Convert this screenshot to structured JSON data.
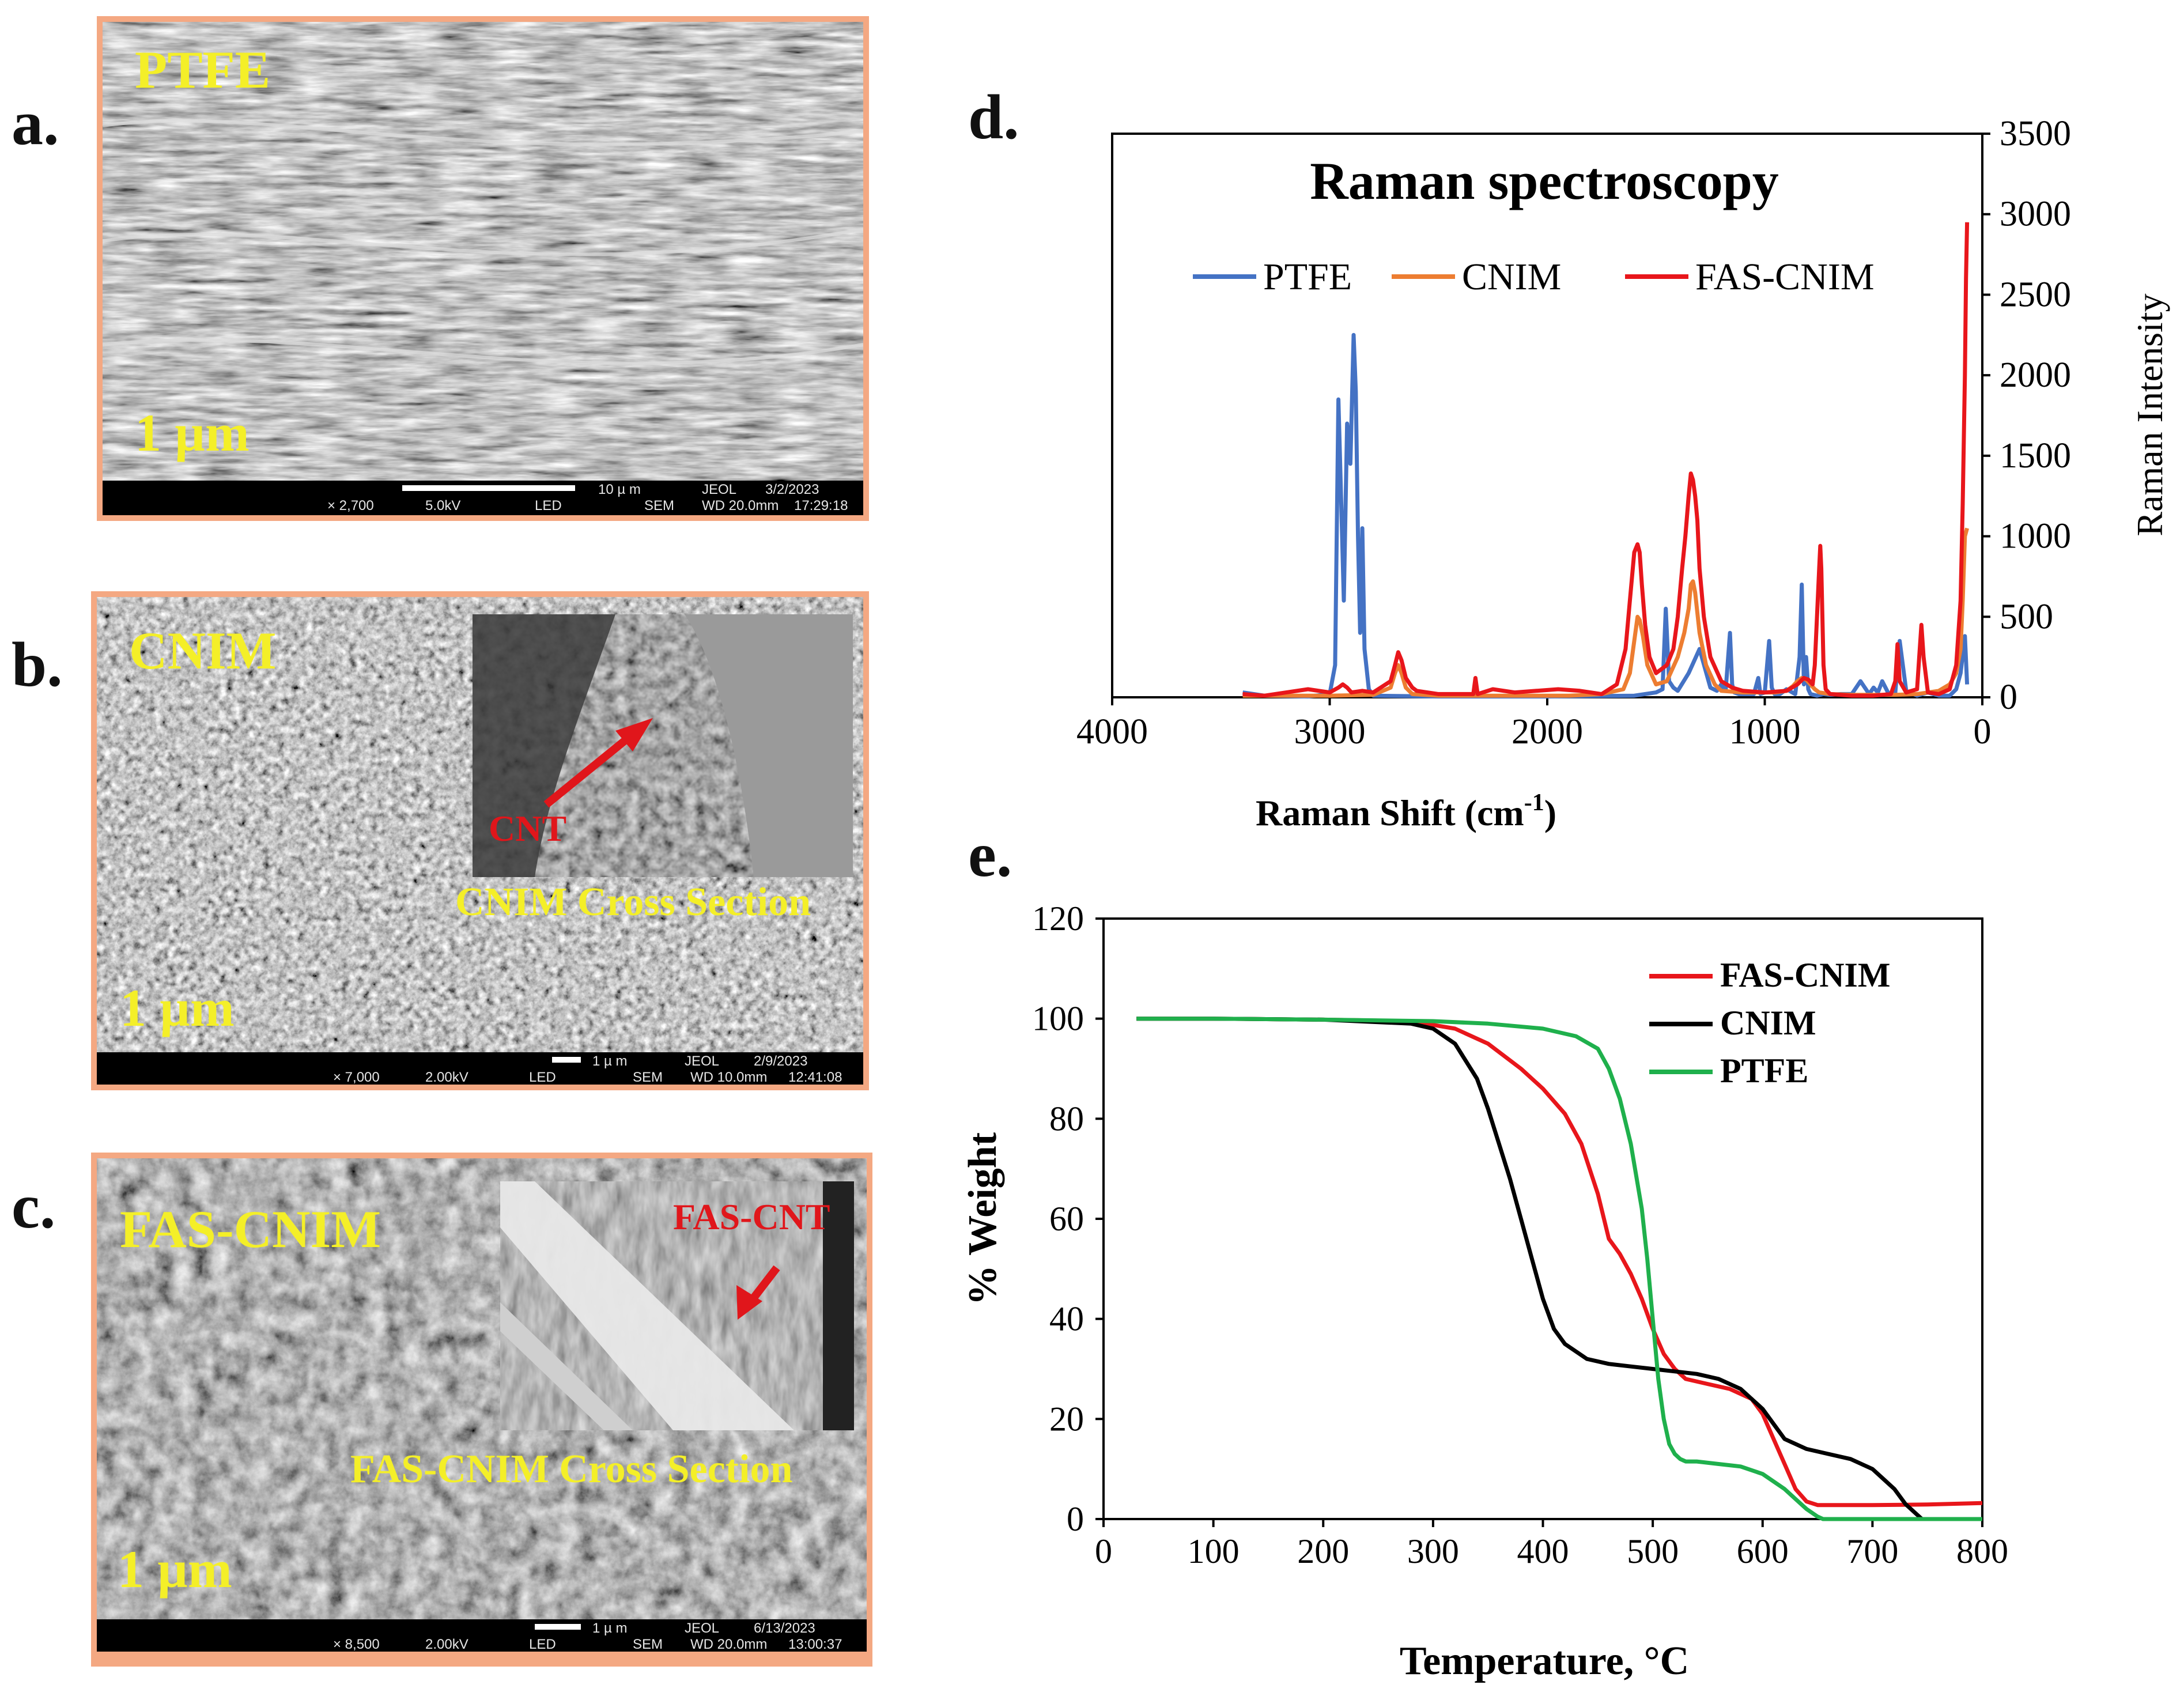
{
  "panels": {
    "a": {
      "letter": "a.",
      "label": "PTFE",
      "scale": "1 µm",
      "bar": {
        "scale_text": "10 µ m",
        "org": "JEOL",
        "date": "3/2/2023",
        "mag": "× 2,700",
        "kv": "5.0kV",
        "det": "LED",
        "mode": "SEM",
        "wd": "WD 20.0mm",
        "time": "17:29:18"
      }
    },
    "b": {
      "letter": "b.",
      "label": "CNIM",
      "scale": "1 µm",
      "inset_arrow_label": "CNT",
      "inset_caption": "CNIM Cross Section",
      "bar": {
        "scale_text": "1 µ m",
        "org": "JEOL",
        "date": "2/9/2023",
        "mag": "× 7,000",
        "kv": "2.00kV",
        "det": "LED",
        "mode": "SEM",
        "wd": "WD 10.0mm",
        "time": "12:41:08"
      }
    },
    "c": {
      "letter": "c.",
      "label": "FAS-CNIM",
      "scale": "1 µm",
      "inset_arrow_label": "FAS-CNT",
      "inset_caption": "FAS-CNIM Cross Section",
      "bar": {
        "scale_text": "1 µ m",
        "org": "JEOL",
        "date": "6/13/2023",
        "mag": "× 8,500",
        "kv": "2.00kV",
        "det": "LED",
        "mode": "SEM",
        "wd": "WD 20.0mm",
        "time": "13:00:37"
      }
    },
    "d": {
      "letter": "d."
    },
    "e": {
      "letter": "e."
    }
  },
  "colors": {
    "ptfe_raman": "#4472c4",
    "cnim_raman": "#ed7d31",
    "fas_raman": "#e8161b",
    "fas_tga": "#e8161b",
    "cnim_tga": "#000000",
    "ptfe_tga": "#1fb04c",
    "sem_frame": "#f4a882",
    "sem_label": "#f4ef28"
  },
  "chart_data": [
    {
      "id": "raman",
      "type": "line",
      "title": "Raman spectroscopy",
      "xlabel": "Raman Shift (cm",
      "xlabel_sup": "-1",
      "xlabel_end": ")",
      "ylabel": "Raman Intensity",
      "xlim": [
        4000,
        0
      ],
      "ylim": [
        0,
        3500
      ],
      "xticks": [
        4000,
        3000,
        2000,
        1000,
        0
      ],
      "xtick_labels": [
        "4000",
        "3000",
        "2000",
        "1000",
        "0"
      ],
      "yticks": [
        0,
        500,
        1000,
        1500,
        2000,
        2500,
        3000,
        3500
      ],
      "ytick_labels": [
        "0",
        "500",
        "1000",
        "1500",
        "2000",
        "2500",
        "3000",
        "3500"
      ],
      "y_axis_side": "right",
      "legend": [
        "PTFE",
        "CNIM",
        "FAS-CNIM"
      ],
      "legend_position": "top",
      "series": [
        {
          "name": "PTFE",
          "x": [
            3400,
            3300,
            3100,
            3000,
            2975,
            2960,
            2945,
            2935,
            2920,
            2905,
            2890,
            2880,
            2870,
            2860,
            2850,
            2840,
            2820,
            2800,
            2500,
            2000,
            1600,
            1500,
            1470,
            1455,
            1440,
            1420,
            1400,
            1350,
            1300,
            1250,
            1220,
            1200,
            1180,
            1160,
            1150,
            1140,
            1120,
            1050,
            1030,
            1020,
            1000,
            980,
            968,
            955,
            930,
            900,
            860,
            840,
            830,
            820,
            810,
            800,
            790,
            760,
            730,
            700,
            650,
            600,
            560,
            520,
            500,
            480,
            460,
            430,
            400,
            380,
            350,
            300,
            250,
            200,
            150,
            120,
            100,
            80,
            70
          ],
          "y": [
            30,
            10,
            5,
            20,
            200,
            1850,
            1100,
            600,
            1700,
            1450,
            2250,
            1900,
            1000,
            400,
            1050,
            300,
            50,
            10,
            5,
            5,
            10,
            30,
            50,
            550,
            100,
            60,
            40,
            150,
            300,
            60,
            40,
            80,
            40,
            400,
            80,
            30,
            20,
            20,
            120,
            20,
            30,
            350,
            60,
            20,
            20,
            50,
            20,
            250,
            700,
            80,
            250,
            50,
            20,
            10,
            20,
            15,
            20,
            20,
            100,
            20,
            60,
            30,
            100,
            20,
            30,
            350,
            40,
            10,
            30,
            10,
            10,
            50,
            150,
            380,
            80
          ]
        },
        {
          "name": "CNIM",
          "x": [
            3400,
            3200,
            3000,
            2800,
            2720,
            2700,
            2685,
            2670,
            2650,
            2620,
            2500,
            2200,
            1900,
            1750,
            1650,
            1620,
            1600,
            1585,
            1575,
            1560,
            1540,
            1500,
            1450,
            1400,
            1370,
            1350,
            1340,
            1330,
            1320,
            1300,
            1270,
            1230,
            1200,
            1100,
            1000,
            950,
            900,
            870,
            850,
            830,
            810,
            790,
            770,
            750,
            700,
            600,
            500,
            400,
            300,
            200,
            150,
            120,
            100,
            90,
            80,
            70
          ],
          "y": [
            10,
            10,
            10,
            15,
            60,
            150,
            200,
            150,
            60,
            20,
            10,
            10,
            10,
            20,
            50,
            150,
            350,
            500,
            480,
            380,
            200,
            80,
            100,
            250,
            400,
            550,
            700,
            720,
            650,
            400,
            200,
            80,
            40,
            30,
            30,
            30,
            40,
            70,
            100,
            120,
            110,
            80,
            50,
            30,
            20,
            15,
            15,
            15,
            20,
            40,
            80,
            150,
            300,
            600,
            1000,
            1050
          ]
        },
        {
          "name": "FAS-CNIM",
          "x": [
            3400,
            3300,
            3200,
            3100,
            3000,
            2960,
            2940,
            2920,
            2900,
            2850,
            2800,
            2720,
            2700,
            2685,
            2670,
            2650,
            2620,
            2600,
            2500,
            2400,
            2340,
            2330,
            2320,
            2250,
            2150,
            2050,
            1950,
            1850,
            1750,
            1680,
            1640,
            1620,
            1600,
            1585,
            1575,
            1565,
            1550,
            1530,
            1500,
            1480,
            1450,
            1420,
            1400,
            1380,
            1365,
            1350,
            1340,
            1330,
            1320,
            1310,
            1300,
            1280,
            1250,
            1200,
            1150,
            1100,
            1000,
            900,
            850,
            820,
            800,
            780,
            770,
            750,
            745,
            740,
            730,
            720,
            700,
            600,
            500,
            420,
            400,
            390,
            380,
            350,
            300,
            290,
            280,
            270,
            250,
            200,
            150,
            120,
            100,
            90,
            80,
            75,
            70
          ],
          "y": [
            20,
            10,
            30,
            50,
            30,
            60,
            80,
            60,
            30,
            40,
            30,
            100,
            200,
            280,
            230,
            120,
            60,
            40,
            20,
            20,
            20,
            120,
            20,
            50,
            30,
            40,
            50,
            40,
            20,
            80,
            300,
            600,
            900,
            950,
            900,
            700,
            450,
            250,
            150,
            170,
            200,
            300,
            500,
            800,
            1000,
            1250,
            1390,
            1350,
            1250,
            1100,
            800,
            500,
            250,
            100,
            60,
            40,
            30,
            40,
            80,
            120,
            110,
            80,
            200,
            800,
            940,
            800,
            200,
            50,
            20,
            10,
            10,
            20,
            100,
            330,
            100,
            30,
            50,
            250,
            450,
            250,
            30,
            20,
            50,
            200,
            600,
            1200,
            2000,
            2600,
            2950
          ]
        }
      ]
    },
    {
      "id": "tga",
      "type": "line",
      "title": "",
      "xlabel": "Temperature,  °C",
      "ylabel": "% Weight",
      "xlim": [
        0,
        800
      ],
      "ylim": [
        0,
        120
      ],
      "xticks": [
        0,
        100,
        200,
        300,
        400,
        500,
        600,
        700,
        800
      ],
      "xtick_labels": [
        "0",
        "100",
        "200",
        "300",
        "400",
        "500",
        "600",
        "700",
        "800"
      ],
      "yticks": [
        0,
        20,
        40,
        60,
        80,
        100,
        120
      ],
      "ytick_labels": [
        "0",
        "20",
        "40",
        "60",
        "80",
        "100",
        "120"
      ],
      "legend": [
        "FAS-CNIM",
        "CNIM",
        "PTFE"
      ],
      "legend_position": "top-right",
      "series": [
        {
          "name": "FAS-CNIM",
          "x": [
            30,
            100,
            200,
            280,
            320,
            350,
            380,
            400,
            420,
            435,
            450,
            460,
            470,
            480,
            490,
            500,
            510,
            520,
            530,
            550,
            570,
            590,
            600,
            610,
            620,
            630,
            640,
            650,
            660,
            700,
            750,
            800
          ],
          "y": [
            100,
            100,
            99.8,
            99.5,
            98,
            95,
            90,
            86,
            81,
            75,
            65,
            56,
            53,
            49,
            44,
            38,
            33,
            30,
            28,
            27,
            26,
            24,
            21,
            16,
            11,
            6,
            3.5,
            2.8,
            2.8,
            2.8,
            2.9,
            3.2
          ]
        },
        {
          "name": "CNIM",
          "x": [
            30,
            100,
            200,
            280,
            300,
            320,
            340,
            350,
            360,
            370,
            380,
            390,
            400,
            410,
            420,
            440,
            460,
            480,
            500,
            520,
            540,
            560,
            580,
            600,
            610,
            620,
            640,
            660,
            680,
            700,
            710,
            720,
            730,
            740,
            745,
            800
          ],
          "y": [
            100,
            100,
            99.8,
            99,
            98,
            95,
            88,
            82,
            75,
            68,
            60,
            52,
            44,
            38,
            35,
            32,
            31,
            30.5,
            30,
            29.5,
            29,
            28,
            26,
            22,
            19,
            16,
            14,
            13,
            12,
            10,
            8,
            6,
            3,
            1,
            0,
            0
          ]
        },
        {
          "name": "PTFE",
          "x": [
            30,
            100,
            200,
            300,
            350,
            400,
            430,
            450,
            460,
            470,
            480,
            490,
            495,
            500,
            505,
            510,
            515,
            520,
            525,
            530,
            540,
            560,
            580,
            600,
            620,
            630,
            640,
            650,
            655,
            700,
            800
          ],
          "y": [
            100,
            100,
            99.8,
            99.5,
            99,
            98,
            96.5,
            94,
            90,
            84,
            75,
            62,
            52,
            40,
            28,
            20,
            15,
            13,
            12,
            11.5,
            11.5,
            11,
            10.5,
            9,
            6,
            4,
            2,
            0.5,
            0,
            0,
            0
          ]
        }
      ]
    }
  ]
}
